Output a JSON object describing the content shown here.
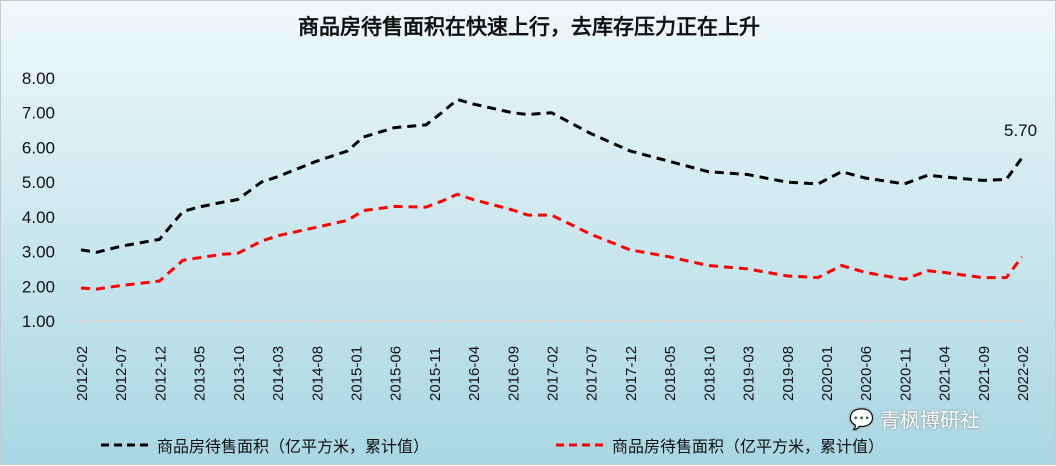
{
  "chart_data": {
    "type": "line",
    "title": "商品房待售面积在快速上行，去库存压力正在上升",
    "xlabel": "",
    "ylabel": "",
    "ylim": [
      1,
      8
    ],
    "yticks": [
      "1.00",
      "2.00",
      "3.00",
      "4.00",
      "5.00",
      "6.00",
      "7.00",
      "8.00"
    ],
    "xticks": [
      "2012-02",
      "2012-07",
      "2012-12",
      "2013-05",
      "2013-10",
      "2014-03",
      "2014-08",
      "2015-01",
      "2015-06",
      "2015-11",
      "2016-04",
      "2016-09",
      "2017-02",
      "2017-07",
      "2017-12",
      "2018-05",
      "2018-10",
      "2019-03",
      "2019-08",
      "2020-01",
      "2020-06",
      "2020-11",
      "2021-04",
      "2021-09",
      "2022-02"
    ],
    "grid": false,
    "legend_position": "bottom",
    "series": [
      {
        "name": "商品房待售面积（亿平方米，累计值）",
        "color": "#000000",
        "x": [
          "2012-02",
          "2012-04",
          "2012-07",
          "2012-12",
          "2013-03",
          "2013-05",
          "2013-08",
          "2013-10",
          "2014-01",
          "2014-03",
          "2014-08",
          "2014-12",
          "2015-02",
          "2015-06",
          "2015-10",
          "2015-12",
          "2016-02",
          "2016-04",
          "2016-09",
          "2016-11",
          "2017-02",
          "2017-07",
          "2017-12",
          "2018-05",
          "2018-10",
          "2019-03",
          "2019-08",
          "2019-12",
          "2020-03",
          "2020-06",
          "2020-11",
          "2021-02",
          "2021-04",
          "2021-09",
          "2021-12",
          "2022-02"
        ],
        "values": [
          3.05,
          2.98,
          3.15,
          3.35,
          4.15,
          4.28,
          4.42,
          4.5,
          5.0,
          5.15,
          5.6,
          5.9,
          6.3,
          6.57,
          6.65,
          7.0,
          7.38,
          7.25,
          7.0,
          6.95,
          7.0,
          6.4,
          5.9,
          5.6,
          5.3,
          5.22,
          5.0,
          4.95,
          5.3,
          5.12,
          4.95,
          5.2,
          5.15,
          5.05,
          5.08,
          5.7
        ]
      },
      {
        "name": "商品房待售面积（亿平方米，累计值）",
        "color": "#ff0000",
        "x": [
          "2012-02",
          "2012-04",
          "2012-07",
          "2012-12",
          "2013-03",
          "2013-05",
          "2013-08",
          "2013-10",
          "2014-01",
          "2014-03",
          "2014-08",
          "2014-12",
          "2015-02",
          "2015-06",
          "2015-10",
          "2015-12",
          "2016-02",
          "2016-04",
          "2016-09",
          "2016-11",
          "2017-02",
          "2017-07",
          "2017-12",
          "2018-05",
          "2018-10",
          "2019-03",
          "2019-08",
          "2019-12",
          "2020-03",
          "2020-06",
          "2020-11",
          "2021-02",
          "2021-04",
          "2021-09",
          "2021-12",
          "2022-02"
        ],
        "values": [
          1.95,
          1.92,
          2.02,
          2.15,
          2.75,
          2.82,
          2.92,
          2.95,
          3.3,
          3.45,
          3.7,
          3.9,
          4.18,
          4.3,
          4.28,
          4.45,
          4.65,
          4.5,
          4.2,
          4.05,
          4.05,
          3.5,
          3.05,
          2.85,
          2.6,
          2.5,
          2.3,
          2.25,
          2.6,
          2.4,
          2.2,
          2.45,
          2.4,
          2.25,
          2.25,
          2.85
        ]
      }
    ],
    "annotations": [
      {
        "text": "5.70",
        "x": "2022-02",
        "series": 0
      }
    ]
  },
  "watermark": "青枫博研社"
}
